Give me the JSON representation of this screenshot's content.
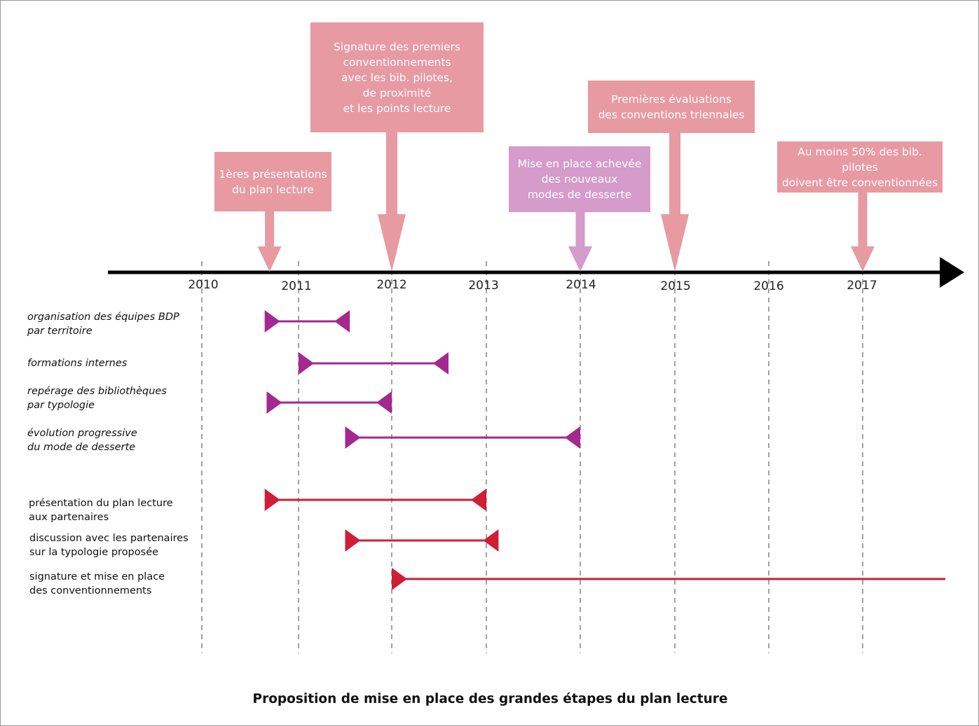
{
  "years": [
    "2010",
    "2011",
    "2012",
    "2013",
    "2014",
    "2015",
    "2016",
    "2017"
  ],
  "colors": {
    "milestone_pink": "#e79aa2",
    "milestone_purple": "#d49bcb",
    "task_purple": "#a4288f",
    "task_red": "#cf1e36",
    "axis": "#000000",
    "gridline": "#8a8a8a"
  },
  "milestones": [
    {
      "text": "1ères présentations\ndu plan lecture",
      "at": 2010.7,
      "color": "pink"
    },
    {
      "text": "Signature des premiers\nconventionnements\navec les bib. pilotes,\nde proximité\net les points lecture",
      "at": 2012.0,
      "color": "pink"
    },
    {
      "text": "Mise en place achevée\ndes nouveaux\nmodes de desserte",
      "at": 2014.0,
      "color": "purple"
    },
    {
      "text": "Premières évaluations\ndes conventions triennales",
      "at": 2015.0,
      "color": "pink"
    },
    {
      "text": "Au moins 50% des bib. pilotes\ndoivent être conventionnées",
      "at": 2017.0,
      "color": "pink"
    }
  ],
  "tasks": [
    {
      "label": "organisation des équipes BDP\npar territoire",
      "start": 2010.65,
      "end": 2011.55,
      "group": "internal"
    },
    {
      "label": "formations internes",
      "start": 2011.0,
      "end": 2012.6,
      "group": "internal"
    },
    {
      "label": "repérage des bibliothèques\npar typologie",
      "start": 2010.67,
      "end": 2012.0,
      "group": "internal"
    },
    {
      "label": "évolution progressive\ndu mode de desserte",
      "start": 2011.5,
      "end": 2014.0,
      "group": "internal"
    },
    {
      "label": "présentation du plan lecture\naux partenaires",
      "start": 2010.65,
      "end": 2013.0,
      "group": "partners"
    },
    {
      "label": "discussion avec les partenaires\nsur la typologie proposée",
      "start": 2011.5,
      "end": 2013.13,
      "group": "partners"
    },
    {
      "label": "signature et mise en place\ndes conventionnements",
      "start": 2012.0,
      "end": null,
      "group": "partners"
    }
  ],
  "caption": "Proposition de mise en place des grandes étapes du plan lecture"
}
